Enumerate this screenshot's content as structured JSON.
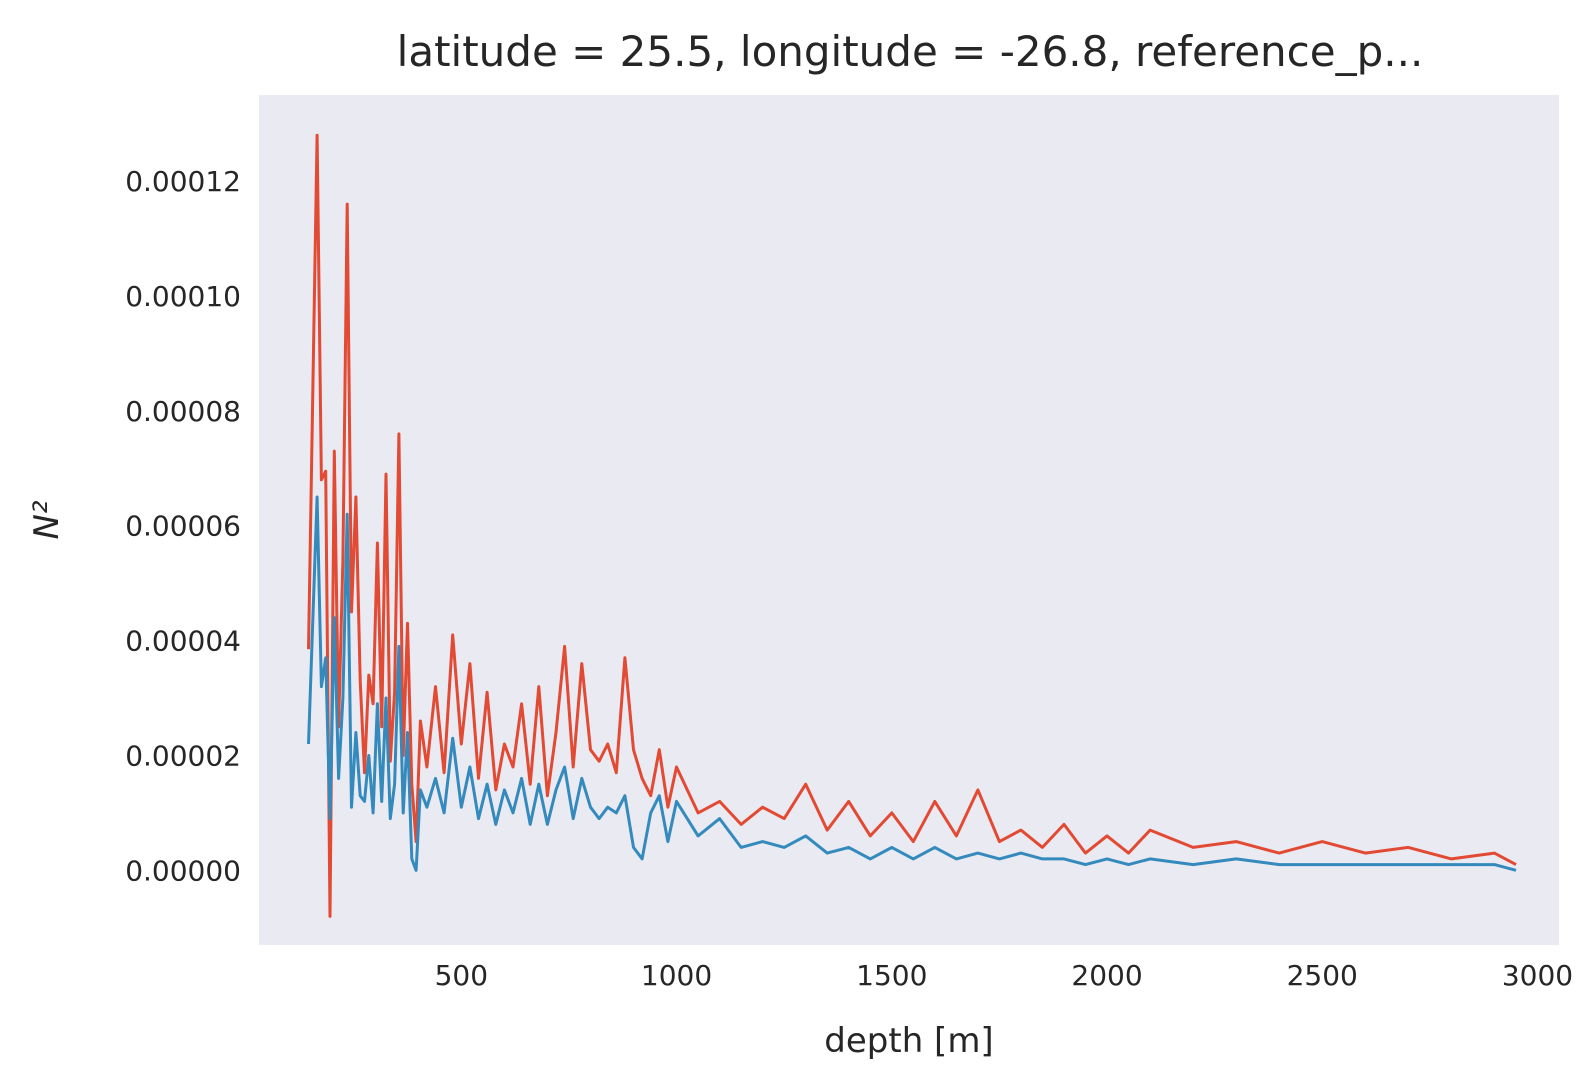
{
  "chart_data": {
    "type": "line",
    "title": "latitude = 25.5, longitude = -26.8, reference_p...",
    "xlabel": "depth [m]",
    "ylabel": "N²",
    "xlim": [
      30,
      3050
    ],
    "ylim": [
      -1.3e-05,
      0.000135
    ],
    "xticks": [
      500,
      1000,
      1500,
      2000,
      2500,
      3000
    ],
    "xtick_labels": [
      "500",
      "1000",
      "1500",
      "2000",
      "2500",
      "3000"
    ],
    "yticks": [
      0,
      2e-05,
      4e-05,
      6e-05,
      8e-05,
      0.0001,
      0.00012
    ],
    "ytick_labels": [
      "0.00000",
      "0.00002",
      "0.00004",
      "0.00006",
      "0.00008",
      "0.00010",
      "0.00012"
    ],
    "grid": false,
    "background": "#eaeaf2",
    "series": [
      {
        "color": "#e24a33",
        "x": [
          145,
          165,
          175,
          185,
          195,
          205,
          215,
          225,
          235,
          245,
          255,
          265,
          275,
          285,
          295,
          305,
          315,
          325,
          335,
          345,
          355,
          365,
          375,
          385,
          395,
          405,
          420,
          440,
          460,
          480,
          500,
          520,
          540,
          560,
          580,
          600,
          620,
          640,
          660,
          680,
          700,
          720,
          740,
          760,
          780,
          800,
          820,
          840,
          860,
          880,
          900,
          920,
          940,
          960,
          980,
          1000,
          1050,
          1100,
          1150,
          1200,
          1250,
          1300,
          1350,
          1400,
          1450,
          1500,
          1550,
          1600,
          1650,
          1700,
          1750,
          1800,
          1850,
          1900,
          1950,
          2000,
          2050,
          2100,
          2200,
          2300,
          2400,
          2500,
          2600,
          2700,
          2800,
          2900,
          2950
        ],
        "values": [
          3.85e-05,
          0.000128,
          6.8e-05,
          6.95e-05,
          -8e-06,
          7.3e-05,
          2.5e-05,
          5.4e-05,
          0.000116,
          4.5e-05,
          6.5e-05,
          3.3e-05,
          1.7e-05,
          3.4e-05,
          2.9e-05,
          5.7e-05,
          2.5e-05,
          6.9e-05,
          1.9e-05,
          3.1e-05,
          7.6e-05,
          2e-05,
          4.3e-05,
          1.5e-05,
          5e-06,
          2.6e-05,
          1.8e-05,
          3.2e-05,
          1.7e-05,
          4.1e-05,
          2.2e-05,
          3.6e-05,
          1.6e-05,
          3.1e-05,
          1.4e-05,
          2.2e-05,
          1.8e-05,
          2.9e-05,
          1.5e-05,
          3.2e-05,
          1.3e-05,
          2.4e-05,
          3.9e-05,
          1.8e-05,
          3.6e-05,
          2.1e-05,
          1.9e-05,
          2.2e-05,
          1.7e-05,
          3.7e-05,
          2.1e-05,
          1.6e-05,
          1.3e-05,
          2.1e-05,
          1.1e-05,
          1.8e-05,
          1e-05,
          1.2e-05,
          8e-06,
          1.1e-05,
          9e-06,
          1.5e-05,
          7e-06,
          1.2e-05,
          6e-06,
          1e-05,
          5e-06,
          1.2e-05,
          6e-06,
          1.4e-05,
          5e-06,
          7e-06,
          4e-06,
          8e-06,
          3e-06,
          6e-06,
          3e-06,
          7e-06,
          4e-06,
          5e-06,
          3e-06,
          5e-06,
          3e-06,
          4e-06,
          2e-06,
          3e-06,
          1e-06
        ]
      },
      {
        "color": "#348abd",
        "x": [
          145,
          165,
          175,
          185,
          195,
          205,
          215,
          225,
          235,
          245,
          255,
          265,
          275,
          285,
          295,
          305,
          315,
          325,
          335,
          345,
          355,
          365,
          375,
          385,
          395,
          405,
          420,
          440,
          460,
          480,
          500,
          520,
          540,
          560,
          580,
          600,
          620,
          640,
          660,
          680,
          700,
          720,
          740,
          760,
          780,
          800,
          820,
          840,
          860,
          880,
          900,
          920,
          940,
          960,
          980,
          1000,
          1050,
          1100,
          1150,
          1200,
          1250,
          1300,
          1350,
          1400,
          1450,
          1500,
          1550,
          1600,
          1650,
          1700,
          1750,
          1800,
          1850,
          1900,
          1950,
          2000,
          2050,
          2100,
          2200,
          2300,
          2400,
          2500,
          2600,
          2700,
          2800,
          2900,
          2950
        ],
        "values": [
          2.2e-05,
          6.5e-05,
          3.2e-05,
          3.7e-05,
          9e-06,
          4.4e-05,
          1.6e-05,
          3e-05,
          6.2e-05,
          1.1e-05,
          2.4e-05,
          1.3e-05,
          1.2e-05,
          2e-05,
          1e-05,
          2.9e-05,
          1.2e-05,
          3e-05,
          9e-06,
          1.5e-05,
          3.9e-05,
          1e-05,
          2.4e-05,
          2e-06,
          0.0,
          1.4e-05,
          1.1e-05,
          1.6e-05,
          1e-05,
          2.3e-05,
          1.1e-05,
          1.8e-05,
          9e-06,
          1.5e-05,
          8e-06,
          1.4e-05,
          1e-05,
          1.6e-05,
          8e-06,
          1.5e-05,
          8e-06,
          1.4e-05,
          1.8e-05,
          9e-06,
          1.6e-05,
          1.1e-05,
          9e-06,
          1.1e-05,
          1e-05,
          1.3e-05,
          4e-06,
          2e-06,
          1e-05,
          1.3e-05,
          5e-06,
          1.2e-05,
          6e-06,
          9e-06,
          4e-06,
          5e-06,
          4e-06,
          6e-06,
          3e-06,
          4e-06,
          2e-06,
          4e-06,
          2e-06,
          4e-06,
          2e-06,
          3e-06,
          2e-06,
          3e-06,
          2e-06,
          2e-06,
          1e-06,
          2e-06,
          1e-06,
          2e-06,
          1e-06,
          2e-06,
          1e-06,
          1e-06,
          1e-06,
          1e-06,
          1e-06,
          1e-06,
          0.0
        ]
      }
    ]
  }
}
